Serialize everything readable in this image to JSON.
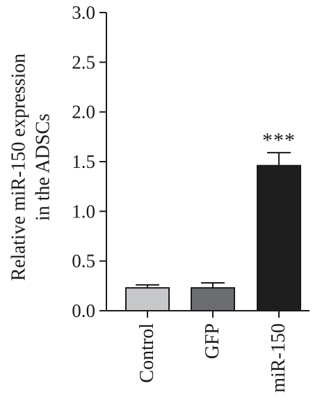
{
  "chart_data": {
    "type": "bar",
    "title": "",
    "xlabel": "",
    "ylabel": "Relative miR-150 expression in the ADSCs",
    "ylabel_lines": [
      "Relative miR-150 expression",
      "in the ADSCs"
    ],
    "categories": [
      "Control",
      "GFP",
      "miR-150"
    ],
    "values": [
      0.23,
      0.23,
      1.46
    ],
    "errors": [
      0.03,
      0.05,
      0.13
    ],
    "annotations": [
      "",
      "",
      "***"
    ],
    "ylim": [
      0,
      3.0
    ],
    "yticks": [
      "0.0",
      "0.5",
      "1.0",
      "1.5",
      "2.0",
      "2.5",
      "3.0"
    ],
    "bar_colors": [
      "#c6c8ca",
      "#6b6d70",
      "#1e1e1e"
    ],
    "grid": false,
    "legend": "none"
  }
}
